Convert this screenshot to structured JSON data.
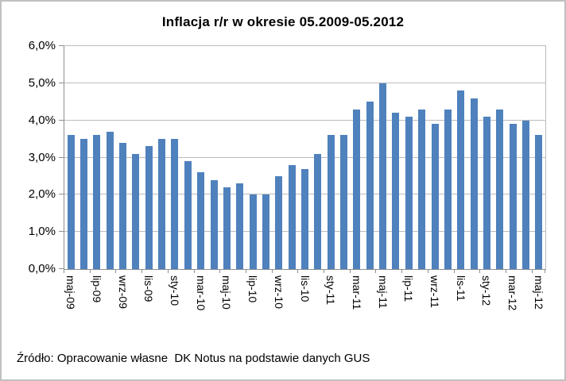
{
  "colors": {
    "bar": "#4F81BD",
    "gridline": "#BCBCBC",
    "axis": "#8F8F8F",
    "frame": "#C0C0C0",
    "text": "#000000",
    "background": "#FFFFFF"
  },
  "chart_data": {
    "type": "bar",
    "title": "Inflacja r/r w okresie 05.2009-05.2012",
    "source_note": "Źródło: Opracowanie własne  DK Notus na podstawie danych GUS",
    "unit": "%",
    "categories": [
      "maj-09",
      "cze-09",
      "lip-09",
      "sie-09",
      "wrz-09",
      "paź-09",
      "lis-09",
      "gru-09",
      "sty-10",
      "lut-10",
      "mar-10",
      "kwi-10",
      "maj-10",
      "cze-10",
      "lip-10",
      "sie-10",
      "wrz-10",
      "paź-10",
      "lis-10",
      "gru-10",
      "sty-11",
      "lut-11",
      "mar-11",
      "kwi-11",
      "maj-11",
      "cze-11",
      "lip-11",
      "sie-11",
      "wrz-11",
      "paź-11",
      "lis-11",
      "gru-11",
      "sty-12",
      "lut-12",
      "mar-12",
      "kwi-12",
      "maj-12"
    ],
    "values": [
      3.6,
      3.5,
      3.6,
      3.7,
      3.4,
      3.1,
      3.3,
      3.5,
      3.5,
      2.9,
      2.6,
      2.4,
      2.2,
      2.3,
      2.0,
      2.0,
      2.5,
      2.8,
      2.7,
      3.1,
      3.6,
      3.6,
      4.3,
      4.5,
      5.0,
      4.2,
      4.1,
      4.3,
      3.9,
      4.3,
      4.8,
      4.6,
      4.1,
      4.3,
      3.9,
      4.0,
      3.6
    ],
    "x_tick_labels_shown": [
      "maj-09",
      "lip-09",
      "wrz-09",
      "lis-09",
      "sty-10",
      "mar-10",
      "maj-10",
      "lip-10",
      "wrz-10",
      "lis-10",
      "sty-11",
      "mar-11",
      "maj-11",
      "lip-11",
      "wrz-11",
      "lis-11",
      "sty-12",
      "mar-12",
      "maj-12"
    ],
    "x_label_interval": 2,
    "y_tick_labels": [
      "0,0%",
      "1,0%",
      "2,0%",
      "3,0%",
      "4,0%",
      "5,0%",
      "6,0%"
    ],
    "ylim": [
      0,
      6
    ],
    "y_step": 1,
    "grid": "horizontal",
    "legend": "none"
  }
}
